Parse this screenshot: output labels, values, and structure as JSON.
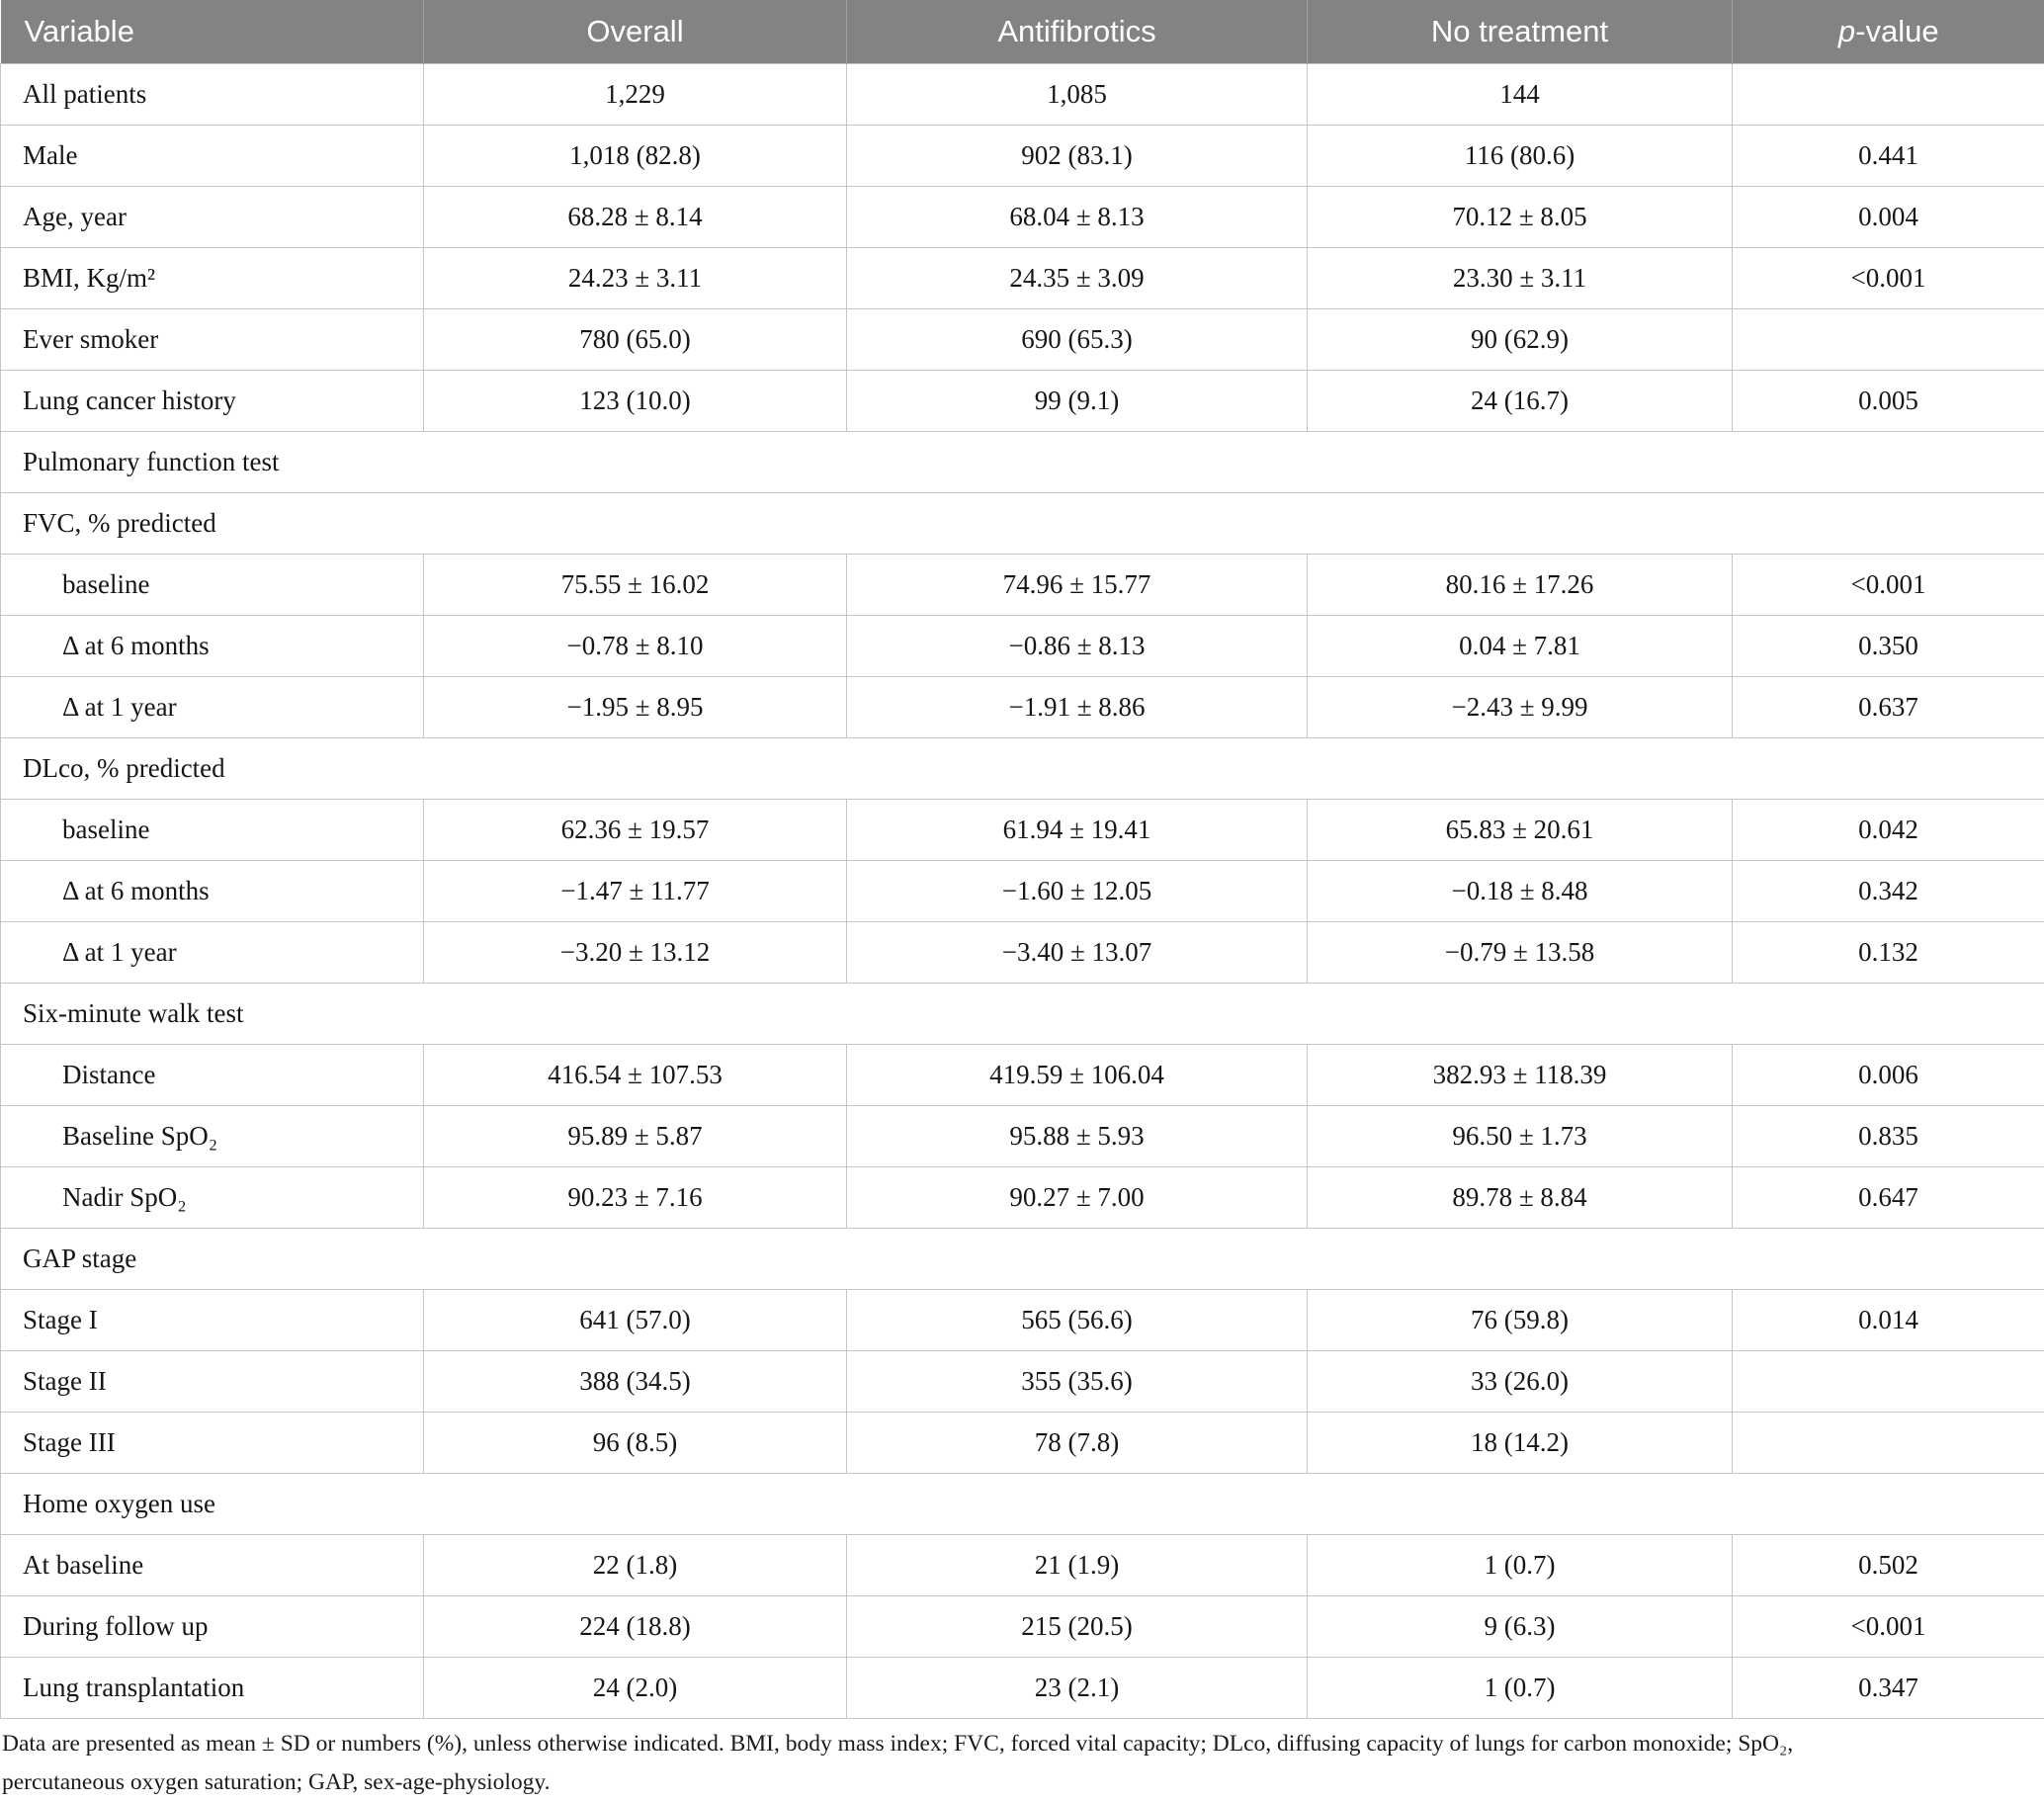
{
  "colors": {
    "header_bg": "#828481",
    "header_text": "#ffffff",
    "border": "#c5c5c5",
    "body_text": "#161616"
  },
  "header": {
    "variable": "Variable",
    "overall": "Overall",
    "antifibrotics": "Antifibrotics",
    "no_treatment": "No treatment",
    "p_italic": "p",
    "p_rest": "-value"
  },
  "table": {
    "rows": [
      {
        "type": "data",
        "indent": false,
        "label": "All patients",
        "overall": "1,229",
        "antifibrotics": "1,085",
        "no_treatment": "144",
        "p": ""
      },
      {
        "type": "data",
        "indent": false,
        "label": "Male",
        "overall": "1,018 (82.8)",
        "antifibrotics": "902 (83.1)",
        "no_treatment": "116 (80.6)",
        "p": "0.441"
      },
      {
        "type": "data",
        "indent": false,
        "label": "Age, year",
        "overall": "68.28 ± 8.14",
        "antifibrotics": "68.04 ± 8.13",
        "no_treatment": "70.12 ± 8.05",
        "p": "0.004"
      },
      {
        "type": "data",
        "indent": false,
        "label": "BMI, Kg/m²",
        "overall": "24.23 ± 3.11",
        "antifibrotics": "24.35 ± 3.09",
        "no_treatment": "23.30 ± 3.11",
        "p": "<0.001"
      },
      {
        "type": "data",
        "indent": false,
        "label": "Ever smoker",
        "overall": "780 (65.0)",
        "antifibrotics": "690 (65.3)",
        "no_treatment": "90 (62.9)",
        "p": ""
      },
      {
        "type": "data",
        "indent": false,
        "label": "Lung cancer history",
        "overall": "123 (10.0)",
        "antifibrotics": "99 (9.1)",
        "no_treatment": "24 (16.7)",
        "p": "0.005"
      },
      {
        "type": "section",
        "label": "Pulmonary function test"
      },
      {
        "type": "section",
        "label": "FVC, % predicted"
      },
      {
        "type": "data",
        "indent": true,
        "label": "baseline",
        "overall": "75.55 ± 16.02",
        "antifibrotics": "74.96 ± 15.77",
        "no_treatment": "80.16 ± 17.26",
        "p": "<0.001"
      },
      {
        "type": "data",
        "indent": true,
        "label": "Δ at 6 months",
        "overall": "−0.78 ± 8.10",
        "antifibrotics": "−0.86 ± 8.13",
        "no_treatment": "0.04 ± 7.81",
        "p": "0.350"
      },
      {
        "type": "data",
        "indent": true,
        "label": "Δ at 1 year",
        "overall": "−1.95 ± 8.95",
        "antifibrotics": "−1.91 ± 8.86",
        "no_treatment": "−2.43 ± 9.99",
        "p": "0.637"
      },
      {
        "type": "section",
        "label": "DLco, % predicted"
      },
      {
        "type": "data",
        "indent": true,
        "label": "baseline",
        "overall": "62.36 ± 19.57",
        "antifibrotics": "61.94 ± 19.41",
        "no_treatment": "65.83 ± 20.61",
        "p": "0.042"
      },
      {
        "type": "data",
        "indent": true,
        "label": "Δ at 6 months",
        "overall": "−1.47 ± 11.77",
        "antifibrotics": "−1.60 ± 12.05",
        "no_treatment": "−0.18 ± 8.48",
        "p": "0.342"
      },
      {
        "type": "data",
        "indent": true,
        "label": "Δ at 1 year",
        "overall": "−3.20 ± 13.12",
        "antifibrotics": "−3.40 ± 13.07",
        "no_treatment": "−0.79 ± 13.58",
        "p": "0.132"
      },
      {
        "type": "section",
        "label": "Six-minute walk test"
      },
      {
        "type": "data",
        "indent": true,
        "label": "Distance",
        "overall": "416.54 ± 107.53",
        "antifibrotics": "419.59 ± 106.04",
        "no_treatment": "382.93 ± 118.39",
        "p": "0.006"
      },
      {
        "type": "data",
        "indent": true,
        "label": "Baseline SpO₂",
        "overall": "95.89 ± 5.87",
        "antifibrotics": "95.88 ± 5.93",
        "no_treatment": "96.50 ± 1.73",
        "p": "0.835"
      },
      {
        "type": "data",
        "indent": true,
        "label": "Nadir SpO₂",
        "overall": "90.23 ± 7.16",
        "antifibrotics": "90.27 ± 7.00",
        "no_treatment": "89.78 ± 8.84",
        "p": "0.647"
      },
      {
        "type": "section",
        "label": "GAP stage"
      },
      {
        "type": "data",
        "indent": false,
        "label": "Stage I",
        "overall": "641 (57.0)",
        "antifibrotics": "565 (56.6)",
        "no_treatment": "76 (59.8)",
        "p": "0.014"
      },
      {
        "type": "data",
        "indent": false,
        "label": "Stage II",
        "overall": "388 (34.5)",
        "antifibrotics": "355 (35.6)",
        "no_treatment": "33 (26.0)",
        "p": ""
      },
      {
        "type": "data",
        "indent": false,
        "label": "Stage III",
        "overall": "96 (8.5)",
        "antifibrotics": "78 (7.8)",
        "no_treatment": "18 (14.2)",
        "p": ""
      },
      {
        "type": "section",
        "label": "Home oxygen use"
      },
      {
        "type": "data",
        "indent": false,
        "label": "At baseline",
        "overall": "22 (1.8)",
        "antifibrotics": "21 (1.9)",
        "no_treatment": "1 (0.7)",
        "p": "0.502"
      },
      {
        "type": "data",
        "indent": false,
        "label": "During follow up",
        "overall": "224 (18.8)",
        "antifibrotics": "215 (20.5)",
        "no_treatment": "9 (6.3)",
        "p": "<0.001"
      },
      {
        "type": "data",
        "indent": false,
        "label": "Lung transplantation",
        "overall": "24 (2.0)",
        "antifibrotics": "23 (2.1)",
        "no_treatment": "1 (0.7)",
        "p": "0.347"
      }
    ]
  },
  "footnote": {
    "lines": [
      "Data are presented as mean ± SD or numbers (%), unless otherwise indicated. BMI, body mass index; FVC, forced vital capacity; DLco, diffusing capacity of lungs for carbon monoxide; SpO₂,",
      "percutaneous oxygen saturation; GAP, sex-age-physiology."
    ]
  }
}
